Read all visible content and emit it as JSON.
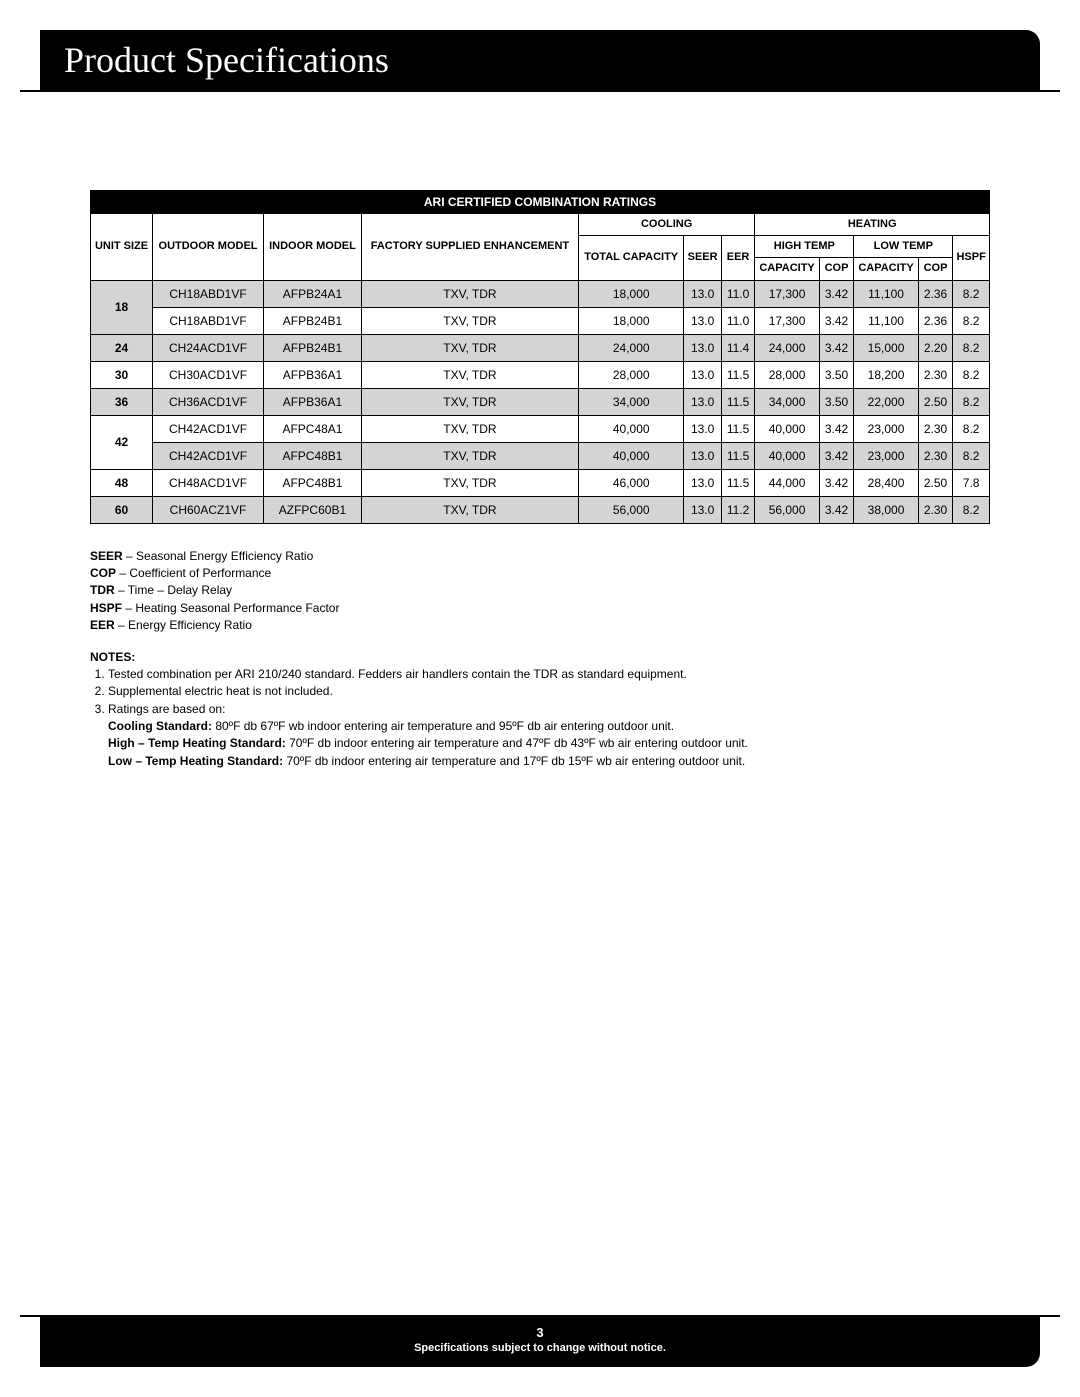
{
  "header": {
    "title": "Product Specifications"
  },
  "table": {
    "title": "ARI CERTIFIED COMBINATION RATINGS",
    "columns": {
      "unit_size": "UNIT SIZE",
      "outdoor_model": "OUTDOOR MODEL",
      "indoor_model": "INDOOR MODEL",
      "factory": "FACTORY SUPPLIED ENHANCEMENT",
      "cooling": "COOLING",
      "heating": "HEATING",
      "total_capacity": "TOTAL CAPACITY",
      "seer": "SEER",
      "eer": "EER",
      "high_temp": "HIGH TEMP",
      "low_temp": "LOW TEMP",
      "capacity": "CAPACITY",
      "cop": "COP",
      "hspf": "HSPF"
    },
    "rows": [
      {
        "unit": "18",
        "unit_rowspan": 2,
        "shaded": true,
        "outdoor": "CH18ABD1VF",
        "indoor": "AFPB24A1",
        "factory": "TXV, TDR",
        "tcap": "18,000",
        "seer": "13.0",
        "eer": "11.0",
        "hcap": "17,300",
        "hcop": "3.42",
        "lcap": "11,100",
        "lcop": "2.36",
        "hspf": "8.2"
      },
      {
        "unit": "",
        "unit_rowspan": 0,
        "shaded": false,
        "outdoor": "CH18ABD1VF",
        "indoor": "AFPB24B1",
        "factory": "TXV, TDR",
        "tcap": "18,000",
        "seer": "13.0",
        "eer": "11.0",
        "hcap": "17,300",
        "hcop": "3.42",
        "lcap": "11,100",
        "lcop": "2.36",
        "hspf": "8.2"
      },
      {
        "unit": "24",
        "unit_rowspan": 1,
        "shaded": true,
        "outdoor": "CH24ACD1VF",
        "indoor": "AFPB24B1",
        "factory": "TXV, TDR",
        "tcap": "24,000",
        "seer": "13.0",
        "eer": "11.4",
        "hcap": "24,000",
        "hcop": "3.42",
        "lcap": "15,000",
        "lcop": "2.20",
        "hspf": "8.2"
      },
      {
        "unit": "30",
        "unit_rowspan": 1,
        "shaded": false,
        "outdoor": "CH30ACD1VF",
        "indoor": "AFPB36A1",
        "factory": "TXV, TDR",
        "tcap": "28,000",
        "seer": "13.0",
        "eer": "11.5",
        "hcap": "28,000",
        "hcop": "3.50",
        "lcap": "18,200",
        "lcop": "2.30",
        "hspf": "8.2"
      },
      {
        "unit": "36",
        "unit_rowspan": 1,
        "shaded": true,
        "outdoor": "CH36ACD1VF",
        "indoor": "AFPB36A1",
        "factory": "TXV, TDR",
        "tcap": "34,000",
        "seer": "13.0",
        "eer": "11.5",
        "hcap": "34,000",
        "hcop": "3.50",
        "lcap": "22,000",
        "lcop": "2.50",
        "hspf": "8.2"
      },
      {
        "unit": "42",
        "unit_rowspan": 2,
        "shaded": false,
        "outdoor": "CH42ACD1VF",
        "indoor": "AFPC48A1",
        "factory": "TXV, TDR",
        "tcap": "40,000",
        "seer": "13.0",
        "eer": "11.5",
        "hcap": "40,000",
        "hcop": "3.42",
        "lcap": "23,000",
        "lcop": "2.30",
        "hspf": "8.2"
      },
      {
        "unit": "",
        "unit_rowspan": 0,
        "shaded": true,
        "outdoor": "CH42ACD1VF",
        "indoor": "AFPC48B1",
        "factory": "TXV, TDR",
        "tcap": "40,000",
        "seer": "13.0",
        "eer": "11.5",
        "hcap": "40,000",
        "hcop": "3.42",
        "lcap": "23,000",
        "lcop": "2.30",
        "hspf": "8.2"
      },
      {
        "unit": "48",
        "unit_rowspan": 1,
        "shaded": false,
        "outdoor": "CH48ACD1VF",
        "indoor": "AFPC48B1",
        "factory": "TXV, TDR",
        "tcap": "46,000",
        "seer": "13.0",
        "eer": "11.5",
        "hcap": "44,000",
        "hcop": "3.42",
        "lcap": "28,400",
        "lcop": "2.50",
        "hspf": "7.8"
      },
      {
        "unit": "60",
        "unit_rowspan": 1,
        "shaded": true,
        "outdoor": "CH60ACZ1VF",
        "indoor": "AZFPC60B1",
        "factory": "TXV, TDR",
        "tcap": "56,000",
        "seer": "13.0",
        "eer": "11.2",
        "hcap": "56,000",
        "hcop": "3.42",
        "lcap": "38,000",
        "lcop": "2.30",
        "hspf": "8.2"
      }
    ]
  },
  "glossary": [
    {
      "term": "SEER",
      "def": " – Seasonal Energy Efficiency Ratio"
    },
    {
      "term": "COP",
      "def": " –  Coefficient of Performance"
    },
    {
      "term": "TDR",
      "def": " – Time – Delay Relay"
    },
    {
      "term": "HSPF",
      "def": " – Heating Seasonal Performance Factor"
    },
    {
      "term": "EER",
      "def": " – Energy Efficiency Ratio"
    }
  ],
  "notes": {
    "title": "NOTES:",
    "items": [
      "Tested combination per ARI 210/240 standard. Fedders air handlers contain the TDR as standard equipment.",
      "Supplemental electric heat is not included.",
      "Ratings are based on:"
    ],
    "sub": [
      {
        "label": "Cooling Standard:",
        "text": " 80ºF db 67ºF wb indoor entering air temperature and 95ºF db air entering outdoor unit."
      },
      {
        "label": "High – Temp Heating Standard:",
        "text": " 70ºF db indoor entering air temperature and 47ºF db 43ºF wb air entering outdoor unit."
      },
      {
        "label": "Low – Temp Heating Standard:",
        "text": " 70ºF db indoor entering air temperature and 17ºF db 15ºF wb air entering outdoor unit."
      }
    ]
  },
  "footer": {
    "page": "3",
    "disclaimer": "Specifications subject to change without notice."
  }
}
